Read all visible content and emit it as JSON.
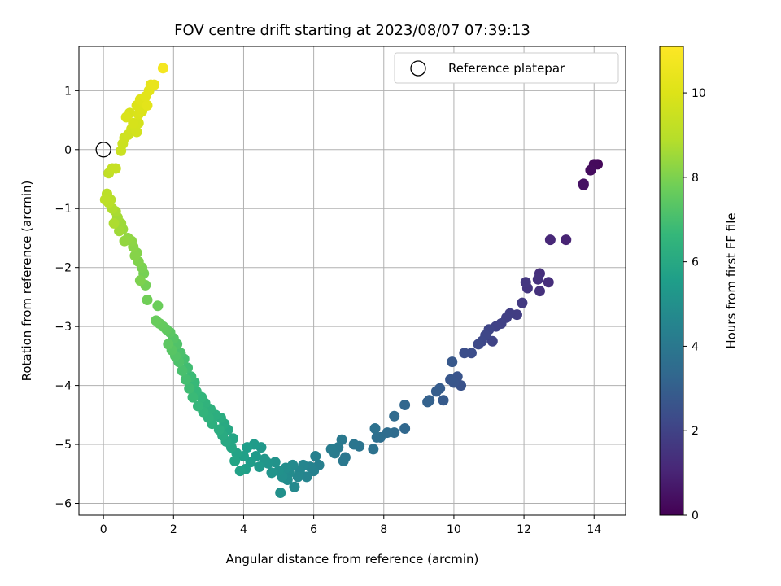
{
  "chart_data": {
    "type": "scatter",
    "title": "FOV centre drift starting at 2023/08/07 07:39:13",
    "xlabel": "Angular distance from reference (arcmin)",
    "ylabel": "Rotation from reference (arcmin)",
    "colorbar_label": "Hours from first FF file",
    "xlim": [
      -0.7,
      14.9
    ],
    "ylim": [
      -6.2,
      1.75
    ],
    "clim": [
      0,
      11.1
    ],
    "x_ticks": [
      0,
      2,
      4,
      6,
      8,
      10,
      12,
      14
    ],
    "y_ticks": [
      1,
      0,
      -1,
      -2,
      -3,
      -4,
      -5,
      -6
    ],
    "colorbar_ticks": [
      0,
      2,
      4,
      6,
      8,
      10
    ],
    "grid": true,
    "colormap": "viridis",
    "legend": {
      "position": "top-right",
      "entries": [
        "Reference platepar"
      ]
    },
    "reference_point": {
      "x": 0,
      "y": 0
    },
    "points": [
      [
        14.1,
        -0.25,
        0.2
      ],
      [
        14.0,
        -0.25,
        0.25
      ],
      [
        13.9,
        -0.35,
        0.3
      ],
      [
        13.7,
        -0.58,
        0.4
      ],
      [
        13.7,
        -0.6,
        0.45
      ],
      [
        13.2,
        -1.53,
        1.0
      ],
      [
        12.75,
        -1.53,
        1.1
      ],
      [
        12.7,
        -2.25,
        1.3
      ],
      [
        12.45,
        -2.1,
        1.35
      ],
      [
        12.45,
        -2.4,
        1.4
      ],
      [
        12.4,
        -2.2,
        1.45
      ],
      [
        12.1,
        -2.35,
        1.55
      ],
      [
        12.05,
        -2.25,
        1.6
      ],
      [
        11.95,
        -2.6,
        1.7
      ],
      [
        11.8,
        -2.8,
        1.8
      ],
      [
        11.6,
        -2.78,
        1.85
      ],
      [
        11.5,
        -2.85,
        1.9
      ],
      [
        11.35,
        -2.95,
        1.95
      ],
      [
        11.2,
        -3.0,
        2.0
      ],
      [
        11.1,
        -3.25,
        2.05
      ],
      [
        11.0,
        -3.05,
        2.1
      ],
      [
        10.9,
        -3.15,
        2.15
      ],
      [
        10.8,
        -3.25,
        2.2
      ],
      [
        10.7,
        -3.3,
        2.25
      ],
      [
        10.5,
        -3.45,
        2.35
      ],
      [
        10.3,
        -3.45,
        2.4
      ],
      [
        10.2,
        -4.0,
        2.55
      ],
      [
        10.1,
        -3.85,
        2.6
      ],
      [
        10.0,
        -3.95,
        2.65
      ],
      [
        9.9,
        -3.9,
        2.7
      ],
      [
        9.95,
        -3.6,
        2.75
      ],
      [
        9.7,
        -4.25,
        2.85
      ],
      [
        9.6,
        -4.05,
        2.9
      ],
      [
        9.5,
        -4.1,
        2.95
      ],
      [
        9.3,
        -4.25,
        3.05
      ],
      [
        9.25,
        -4.28,
        3.1
      ],
      [
        8.6,
        -4.33,
        3.3
      ],
      [
        8.6,
        -4.73,
        3.35
      ],
      [
        8.3,
        -4.52,
        3.45
      ],
      [
        8.3,
        -4.8,
        3.5
      ],
      [
        8.1,
        -4.8,
        3.55
      ],
      [
        7.9,
        -4.88,
        3.6
      ],
      [
        7.8,
        -4.88,
        3.65
      ],
      [
        7.75,
        -4.73,
        3.7
      ],
      [
        7.7,
        -5.08,
        3.75
      ],
      [
        7.3,
        -5.03,
        3.85
      ],
      [
        7.15,
        -5.0,
        3.9
      ],
      [
        6.9,
        -5.22,
        3.95
      ],
      [
        6.85,
        -5.28,
        4.0
      ],
      [
        6.8,
        -4.92,
        4.05
      ],
      [
        6.7,
        -5.05,
        4.1
      ],
      [
        6.6,
        -5.15,
        4.15
      ],
      [
        6.5,
        -5.08,
        4.2
      ],
      [
        6.15,
        -5.35,
        4.3
      ],
      [
        6.05,
        -5.2,
        4.35
      ],
      [
        6.0,
        -5.45,
        4.4
      ],
      [
        5.9,
        -5.38,
        4.45
      ],
      [
        5.8,
        -5.55,
        4.5
      ],
      [
        5.7,
        -5.35,
        4.55
      ],
      [
        5.6,
        -5.45,
        4.6
      ],
      [
        5.55,
        -5.55,
        4.65
      ],
      [
        5.45,
        -5.72,
        4.7
      ],
      [
        5.4,
        -5.35,
        4.75
      ],
      [
        5.3,
        -5.48,
        4.8
      ],
      [
        5.25,
        -5.6,
        4.85
      ],
      [
        5.2,
        -5.4,
        4.9
      ],
      [
        5.1,
        -5.55,
        4.95
      ],
      [
        5.05,
        -5.82,
        5.0
      ],
      [
        5.0,
        -5.45,
        5.05
      ],
      [
        4.9,
        -5.3,
        5.1
      ],
      [
        4.8,
        -5.48,
        5.15
      ],
      [
        4.7,
        -5.32,
        5.2
      ],
      [
        4.6,
        -5.25,
        5.25
      ],
      [
        4.5,
        -5.05,
        5.3
      ],
      [
        4.45,
        -5.38,
        5.35
      ],
      [
        4.35,
        -5.2,
        5.4
      ],
      [
        4.3,
        -5.0,
        5.45
      ],
      [
        4.2,
        -5.3,
        5.5
      ],
      [
        4.1,
        -5.05,
        5.55
      ],
      [
        4.05,
        -5.42,
        5.6
      ],
      [
        4.0,
        -5.2,
        5.65
      ],
      [
        3.9,
        -5.45,
        5.7
      ],
      [
        3.8,
        -5.15,
        5.75
      ],
      [
        3.75,
        -5.28,
        5.8
      ],
      [
        3.7,
        -4.9,
        5.85
      ],
      [
        3.65,
        -5.05,
        5.9
      ],
      [
        3.55,
        -4.75,
        5.95
      ],
      [
        3.5,
        -4.95,
        6.0
      ],
      [
        3.45,
        -4.65,
        6.05
      ],
      [
        3.4,
        -4.85,
        6.1
      ],
      [
        3.35,
        -4.55,
        6.15
      ],
      [
        3.3,
        -4.75,
        6.2
      ],
      [
        3.2,
        -4.5,
        6.25
      ],
      [
        3.1,
        -4.65,
        6.3
      ],
      [
        3.05,
        -4.4,
        6.35
      ],
      [
        3.0,
        -4.55,
        6.4
      ],
      [
        2.9,
        -4.3,
        6.45
      ],
      [
        2.85,
        -4.45,
        6.5
      ],
      [
        2.8,
        -4.2,
        6.55
      ],
      [
        2.7,
        -4.35,
        6.6
      ],
      [
        2.65,
        -4.1,
        6.65
      ],
      [
        2.6,
        -3.95,
        6.7
      ],
      [
        2.55,
        -4.2,
        6.75
      ],
      [
        2.5,
        -3.85,
        6.8
      ],
      [
        2.45,
        -4.05,
        6.85
      ],
      [
        2.4,
        -3.7,
        6.9
      ],
      [
        2.35,
        -3.9,
        6.95
      ],
      [
        2.3,
        -3.55,
        7.0
      ],
      [
        2.25,
        -3.75,
        7.05
      ],
      [
        2.2,
        -3.45,
        7.1
      ],
      [
        2.15,
        -3.6,
        7.15
      ],
      [
        2.1,
        -3.3,
        7.2
      ],
      [
        2.05,
        -3.5,
        7.25
      ],
      [
        2.0,
        -3.2,
        7.3
      ],
      [
        1.95,
        -3.4,
        7.35
      ],
      [
        1.9,
        -3.1,
        7.4
      ],
      [
        1.85,
        -3.3,
        7.45
      ],
      [
        1.8,
        -3.05,
        7.5
      ],
      [
        1.7,
        -3.0,
        7.55
      ],
      [
        1.6,
        -2.95,
        7.6
      ],
      [
        1.5,
        -2.9,
        7.65
      ],
      [
        1.55,
        -2.65,
        7.7
      ],
      [
        1.25,
        -2.55,
        7.8
      ],
      [
        1.2,
        -2.3,
        7.85
      ],
      [
        1.15,
        -2.1,
        7.9
      ],
      [
        1.1,
        -2.0,
        7.95
      ],
      [
        1.05,
        -2.22,
        8.0
      ],
      [
        1.0,
        -1.9,
        8.05
      ],
      [
        0.95,
        -1.75,
        8.1
      ],
      [
        0.9,
        -1.8,
        8.15
      ],
      [
        0.85,
        -1.65,
        8.2
      ],
      [
        0.8,
        -1.55,
        8.25
      ],
      [
        0.7,
        -1.5,
        8.3
      ],
      [
        0.6,
        -1.55,
        8.35
      ],
      [
        0.55,
        -1.35,
        8.45
      ],
      [
        0.5,
        -1.25,
        8.5
      ],
      [
        0.45,
        -1.38,
        8.55
      ],
      [
        0.4,
        -1.15,
        8.6
      ],
      [
        0.35,
        -1.05,
        8.7
      ],
      [
        0.3,
        -1.25,
        8.75
      ],
      [
        0.25,
        -1.0,
        8.8
      ],
      [
        0.2,
        -0.85,
        8.9
      ],
      [
        0.15,
        -0.9,
        9.0
      ],
      [
        0.1,
        -0.75,
        9.05
      ],
      [
        0.05,
        -0.85,
        9.1
      ],
      [
        0.15,
        -0.4,
        9.2
      ],
      [
        0.25,
        -0.32,
        9.3
      ],
      [
        0.35,
        -0.32,
        9.35
      ],
      [
        0.5,
        -0.02,
        9.45
      ],
      [
        0.55,
        0.1,
        9.5
      ],
      [
        0.6,
        0.2,
        9.55
      ],
      [
        0.7,
        0.25,
        9.6
      ],
      [
        0.8,
        0.35,
        9.65
      ],
      [
        0.9,
        0.4,
        9.7
      ],
      [
        1.0,
        0.45,
        9.75
      ],
      [
        0.85,
        0.45,
        9.8
      ],
      [
        0.75,
        0.62,
        9.85
      ],
      [
        1.0,
        0.6,
        9.9
      ],
      [
        1.1,
        0.65,
        9.95
      ],
      [
        0.95,
        0.75,
        10.0
      ],
      [
        1.15,
        0.8,
        10.05
      ],
      [
        1.05,
        0.85,
        10.1
      ],
      [
        1.2,
        0.9,
        10.15
      ],
      [
        1.3,
        1.0,
        10.2
      ],
      [
        1.35,
        1.1,
        10.3
      ],
      [
        1.45,
        1.1,
        10.4
      ],
      [
        1.7,
        1.38,
        10.8
      ],
      [
        0.65,
        0.55,
        9.9
      ],
      [
        0.95,
        0.3,
        9.7
      ],
      [
        1.25,
        0.75,
        10.2
      ]
    ]
  }
}
